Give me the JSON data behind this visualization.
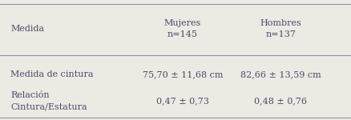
{
  "col_header_1": "Mujeres\nn=145",
  "col_header_2": "Hombres\nn=137",
  "col_header_left": "Medida",
  "row1_label": "Medida de cintura",
  "row1_val1": "75,70 ± 11,68 cm",
  "row1_val2": "82,66 ± 13,59 cm",
  "row2_label": "Relación\nCintura/Estatura",
  "row2_val1": "0,47 ± 0,73",
  "row2_val2": "0,48 ± 0,76",
  "bg_color": "#edeae4",
  "text_color": "#4a4a6a",
  "line_color": "#9090a8",
  "font_size": 8.0
}
